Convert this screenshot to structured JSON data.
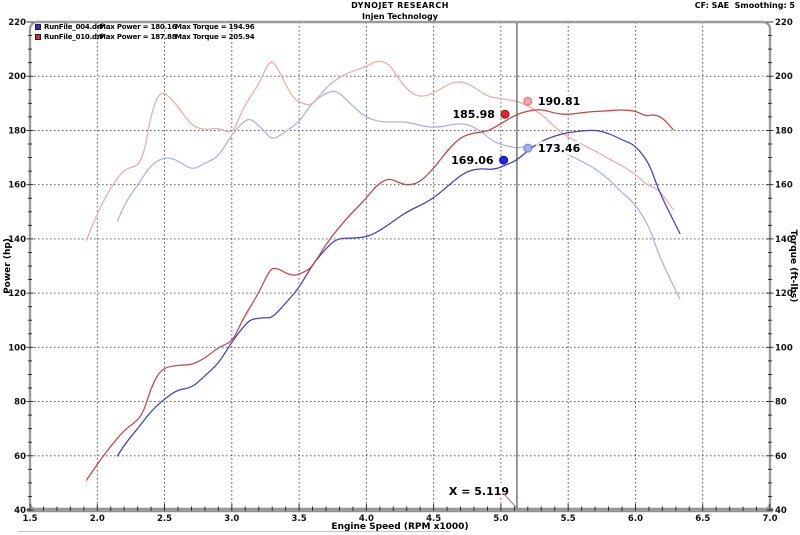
{
  "header": {
    "title": "DYNOJET RESEARCH",
    "subtitle": "Injen Technology",
    "correction": "CF: SAE  Smoothing: 5"
  },
  "legend": [
    {
      "file": "RunFile_004.drf",
      "max_power": "Max Power = 180.16",
      "max_torque": "Max Torque = 194.96",
      "swatch_color": "#3030d0"
    },
    {
      "file": "RunFile_010.drf",
      "max_power": "Max Power = 187.88",
      "max_torque": "Max Torque = 205.94",
      "swatch_color": "#d03030"
    }
  ],
  "chart_data": {
    "type": "line",
    "xlabel": "Engine Speed (RPM x1000)",
    "ylabel_left": "Power (hp)",
    "ylabel_right": "Torque (ft-lbs)",
    "xlim": [
      1.5,
      7.0
    ],
    "ylim": [
      40,
      220
    ],
    "grid": "dashed-major",
    "legend_position": "top-left",
    "xticks": [
      {
        "v": 1.5,
        "label": "1.5"
      },
      {
        "v": 2.0,
        "label": "2.0"
      },
      {
        "v": 2.5,
        "label": "2.5"
      },
      {
        "v": 3.0,
        "label": "3.0"
      },
      {
        "v": 3.5,
        "label": "3.5"
      },
      {
        "v": 4.0,
        "label": "4.0"
      },
      {
        "v": 4.5,
        "label": "4.5"
      },
      {
        "v": 5.0,
        "label": "5.0"
      },
      {
        "v": 5.5,
        "label": "5.5"
      },
      {
        "v": 6.0,
        "label": "6.0"
      },
      {
        "v": 6.5,
        "label": "6.5"
      },
      {
        "v": 7.0,
        "label": "7.0"
      }
    ],
    "yticks": [
      {
        "v": 40,
        "label": "40"
      },
      {
        "v": 60,
        "label": "60"
      },
      {
        "v": 80,
        "label": "80"
      },
      {
        "v": 100,
        "label": "100"
      },
      {
        "v": 120,
        "label": "120"
      },
      {
        "v": 140,
        "label": "140"
      },
      {
        "v": 160,
        "label": "160"
      },
      {
        "v": 180,
        "label": "180"
      },
      {
        "v": 200,
        "label": "200"
      },
      {
        "v": 220,
        "label": "220"
      }
    ],
    "x_minor_step": 0.1,
    "y_minor_step": 5,
    "cursor_x": 5.119,
    "cursor_label": "X = 5.119",
    "series": [
      {
        "name": "RunFile_004.drf Torque (ft-lbs)",
        "run": "RunFile_004.drf",
        "quantity": "torque",
        "color": "#aab2e8",
        "points": [
          [
            2.15,
            146.6
          ],
          [
            2.2,
            152.8
          ],
          [
            2.3,
            159.9
          ],
          [
            2.4,
            167.4
          ],
          [
            2.5,
            170.2
          ],
          [
            2.6,
            169.0
          ],
          [
            2.7,
            165.3
          ],
          [
            2.8,
            167.9
          ],
          [
            2.9,
            170.2
          ],
          [
            3.0,
            178.6
          ],
          [
            3.1,
            183.9
          ],
          [
            3.15,
            184.2
          ],
          [
            3.25,
            179.4
          ],
          [
            3.3,
            176.3
          ],
          [
            3.42,
            180.3
          ],
          [
            3.5,
            183.1
          ],
          [
            3.6,
            190.4
          ],
          [
            3.7,
            193.8
          ],
          [
            3.78,
            194.96
          ],
          [
            3.9,
            188.9
          ],
          [
            4.0,
            184.7
          ],
          [
            4.1,
            183.2
          ],
          [
            4.2,
            183.1
          ],
          [
            4.3,
            183.2
          ],
          [
            4.45,
            181.2
          ],
          [
            4.55,
            181.2
          ],
          [
            4.65,
            182.4
          ],
          [
            4.75,
            182.4
          ],
          [
            4.85,
            179.8
          ],
          [
            4.95,
            175.6
          ],
          [
            5.05,
            174.2
          ],
          [
            5.119,
            173.46
          ],
          [
            5.2,
            174.2
          ],
          [
            5.3,
            174.4
          ],
          [
            5.4,
            173.1
          ],
          [
            5.5,
            171.2
          ],
          [
            5.6,
            168.6
          ],
          [
            5.7,
            166.0
          ],
          [
            5.8,
            162.1
          ],
          [
            5.9,
            157.1
          ],
          [
            6.0,
            152.7
          ],
          [
            6.1,
            144.6
          ],
          [
            6.15,
            137.5
          ],
          [
            6.2,
            131.3
          ],
          [
            6.25,
            126.0
          ],
          [
            6.33,
            117.8
          ]
        ]
      },
      {
        "name": "RunFile_010.drf Torque (ft-lbs)",
        "run": "RunFile_010.drf",
        "quantity": "torque",
        "color": "#eaacac",
        "points": [
          [
            1.92,
            139.5
          ],
          [
            2.0,
            149.7
          ],
          [
            2.1,
            158.8
          ],
          [
            2.2,
            165.9
          ],
          [
            2.3,
            166.7
          ],
          [
            2.35,
            172.1
          ],
          [
            2.4,
            186.0
          ],
          [
            2.45,
            192.9
          ],
          [
            2.5,
            194.3
          ],
          [
            2.6,
            188.8
          ],
          [
            2.7,
            181.8
          ],
          [
            2.8,
            180.1
          ],
          [
            2.9,
            181.1
          ],
          [
            3.0,
            178.6
          ],
          [
            3.05,
            184.2
          ],
          [
            3.1,
            189.7
          ],
          [
            3.2,
            197.0
          ],
          [
            3.28,
            205.94
          ],
          [
            3.33,
            204.2
          ],
          [
            3.45,
            191.8
          ],
          [
            3.55,
            189.4
          ],
          [
            3.6,
            189.6
          ],
          [
            3.7,
            195.9
          ],
          [
            3.8,
            199.7
          ],
          [
            3.9,
            202.0
          ],
          [
            4.0,
            203.5
          ],
          [
            4.08,
            205.9
          ],
          [
            4.17,
            204.7
          ],
          [
            4.25,
            198.3
          ],
          [
            4.32,
            194.3
          ],
          [
            4.4,
            192.2
          ],
          [
            4.5,
            193.7
          ],
          [
            4.6,
            196.9
          ],
          [
            4.7,
            198.3
          ],
          [
            4.8,
            196.1
          ],
          [
            4.9,
            192.5
          ],
          [
            5.0,
            191.7
          ],
          [
            5.119,
            190.81
          ],
          [
            5.2,
            189.1
          ],
          [
            5.3,
            186.1
          ],
          [
            5.4,
            181.2
          ],
          [
            5.5,
            177.4
          ],
          [
            5.6,
            175.0
          ],
          [
            5.7,
            172.4
          ],
          [
            5.8,
            169.6
          ],
          [
            5.9,
            167.0
          ],
          [
            6.0,
            163.9
          ],
          [
            6.08,
            160.0
          ],
          [
            6.13,
            159.3
          ],
          [
            6.2,
            156.6
          ],
          [
            6.28,
            150.8
          ]
        ]
      },
      {
        "name": "RunFile_004.drf Power (hp)",
        "run": "RunFile_004.drf",
        "quantity": "power",
        "color": "#4040c8",
        "points": [
          [
            2.15,
            60
          ],
          [
            2.2,
            64
          ],
          [
            2.3,
            70
          ],
          [
            2.4,
            76.5
          ],
          [
            2.5,
            81
          ],
          [
            2.6,
            84.5
          ],
          [
            2.7,
            85
          ],
          [
            2.8,
            89.5
          ],
          [
            2.9,
            94
          ],
          [
            3.0,
            102
          ],
          [
            3.1,
            108.5
          ],
          [
            3.15,
            110.5
          ],
          [
            3.25,
            111
          ],
          [
            3.3,
            110.8
          ],
          [
            3.42,
            117.4
          ],
          [
            3.5,
            122
          ],
          [
            3.6,
            130.5
          ],
          [
            3.7,
            136.5
          ],
          [
            3.78,
            140.2
          ],
          [
            3.9,
            140.3
          ],
          [
            4.0,
            140.7
          ],
          [
            4.1,
            143
          ],
          [
            4.2,
            146.5
          ],
          [
            4.3,
            150
          ],
          [
            4.45,
            153.5
          ],
          [
            4.55,
            157
          ],
          [
            4.65,
            161.5
          ],
          [
            4.75,
            165
          ],
          [
            4.85,
            166
          ],
          [
            4.95,
            165.5
          ],
          [
            5.05,
            167.5
          ],
          [
            5.119,
            169.06
          ],
          [
            5.2,
            172.5
          ],
          [
            5.3,
            176
          ],
          [
            5.4,
            178
          ],
          [
            5.5,
            179.3
          ],
          [
            5.6,
            179.8
          ],
          [
            5.7,
            180.16
          ],
          [
            5.8,
            179
          ],
          [
            5.9,
            176.5
          ],
          [
            6.0,
            174.5
          ],
          [
            6.1,
            168
          ],
          [
            6.15,
            161
          ],
          [
            6.2,
            155
          ],
          [
            6.25,
            150
          ],
          [
            6.33,
            142
          ]
        ]
      },
      {
        "name": "RunFile_010.drf Power (hp)",
        "run": "RunFile_010.drf",
        "quantity": "power",
        "color": "#c84444",
        "points": [
          [
            1.92,
            51
          ],
          [
            2.0,
            57
          ],
          [
            2.1,
            63.5
          ],
          [
            2.2,
            69.5
          ],
          [
            2.3,
            73
          ],
          [
            2.35,
            77
          ],
          [
            2.4,
            85
          ],
          [
            2.45,
            90
          ],
          [
            2.5,
            92.5
          ],
          [
            2.6,
            93.5
          ],
          [
            2.7,
            93.5
          ],
          [
            2.8,
            96
          ],
          [
            2.9,
            100
          ],
          [
            3.0,
            102
          ],
          [
            3.05,
            107
          ],
          [
            3.1,
            112
          ],
          [
            3.2,
            120
          ],
          [
            3.28,
            128.6
          ],
          [
            3.33,
            129.5
          ],
          [
            3.45,
            126
          ],
          [
            3.55,
            128
          ],
          [
            3.6,
            130
          ],
          [
            3.7,
            138
          ],
          [
            3.8,
            144.5
          ],
          [
            3.9,
            150
          ],
          [
            4.0,
            155
          ],
          [
            4.08,
            160
          ],
          [
            4.17,
            162.5
          ],
          [
            4.25,
            160.5
          ],
          [
            4.32,
            159.8
          ],
          [
            4.4,
            161
          ],
          [
            4.5,
            166
          ],
          [
            4.6,
            172.5
          ],
          [
            4.7,
            177.5
          ],
          [
            4.8,
            179.2
          ],
          [
            4.9,
            179.6
          ],
          [
            5.0,
            182.5
          ],
          [
            5.119,
            185.98
          ],
          [
            5.2,
            187.2
          ],
          [
            5.3,
            187.88
          ],
          [
            5.4,
            186.3
          ],
          [
            5.5,
            185.8
          ],
          [
            5.6,
            186.6
          ],
          [
            5.7,
            187
          ],
          [
            5.8,
            187.3
          ],
          [
            5.9,
            187.6
          ],
          [
            6.0,
            187.2
          ],
          [
            6.08,
            185.2
          ],
          [
            6.13,
            185.9
          ],
          [
            6.2,
            184.8
          ],
          [
            6.28,
            180.3
          ]
        ]
      }
    ],
    "cursor_markers": [
      {
        "label": "190.81",
        "x": 5.2,
        "y": 190.81,
        "side": "right",
        "fill": "#f0a4a4",
        "stroke": "#d87878"
      },
      {
        "label": "185.98",
        "x": 5.03,
        "y": 185.98,
        "side": "left",
        "fill": "#e42424",
        "stroke": "#9c1212"
      },
      {
        "label": "173.46",
        "x": 5.2,
        "y": 173.46,
        "side": "right",
        "fill": "#a4aef0",
        "stroke": "#7880d8"
      },
      {
        "label": "169.06",
        "x": 5.02,
        "y": 169.06,
        "side": "left",
        "fill": "#2424e4",
        "stroke": "#12129c"
      }
    ]
  }
}
